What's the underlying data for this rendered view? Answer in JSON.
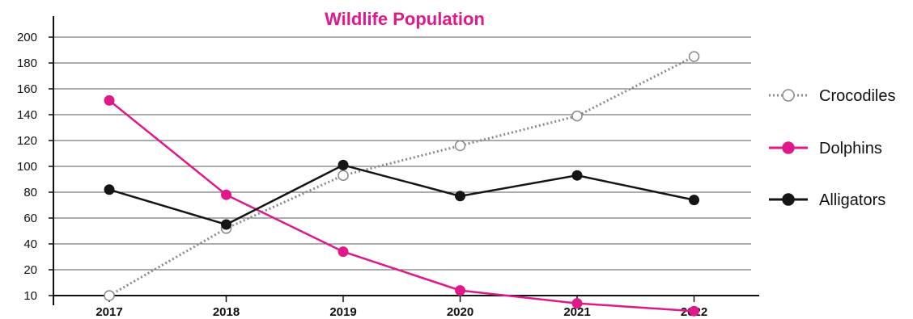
{
  "chart_data": {
    "type": "line",
    "title": "Wildlife Population",
    "xlabel": "",
    "ylabel": "",
    "x": [
      "2017",
      "2018",
      "2019",
      "2020",
      "2021",
      "2022"
    ],
    "yticks": [
      "10",
      "20",
      "40",
      "60",
      "80",
      "100",
      "120",
      "140",
      "160",
      "180",
      "200"
    ],
    "ylim": [
      0,
      200
    ],
    "grid": "horizontal",
    "legend_position": "right",
    "series": [
      {
        "name": "Crocodiles",
        "values": [
          10,
          52,
          93,
          116,
          139,
          185
        ],
        "color": "#8a8a8a",
        "style": "dotted",
        "marker": "hollow-circle"
      },
      {
        "name": "Dolphins",
        "values": [
          151,
          78,
          34,
          12,
          7,
          4
        ],
        "color": "#e0198a",
        "style": "solid",
        "marker": "filled-circle"
      },
      {
        "name": "Alligators",
        "values": [
          82,
          55,
          101,
          77,
          93,
          74
        ],
        "color": "#151515",
        "style": "solid",
        "marker": "filled-circle"
      }
    ],
    "title_color": "#e0198a"
  }
}
